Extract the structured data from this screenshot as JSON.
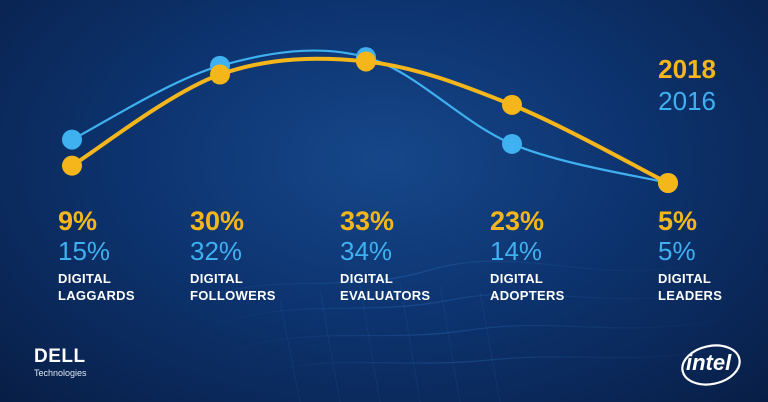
{
  "chart_data": {
    "type": "line",
    "categories": [
      "DIGITAL\nLAGGARDS",
      "DIGITAL\nFOLLOWERS",
      "DIGITAL\nEVALUATORS",
      "DIGITAL\nADOPTERS",
      "DIGITAL\nLEADERS"
    ],
    "series": [
      {
        "name": "2018",
        "color": "#f5b61b",
        "values": [
          9,
          30,
          33,
          23,
          5
        ]
      },
      {
        "name": "2016",
        "color": "#3fb0f0",
        "values": [
          15,
          32,
          34,
          14,
          5
        ]
      }
    ],
    "value_labels_2018": [
      "9%",
      "30%",
      "33%",
      "23%",
      "5%"
    ],
    "value_labels_2016": [
      "15%",
      "32%",
      "34%",
      "14%",
      "5%"
    ],
    "category_labels": [
      [
        "DIGITAL",
        "LAGGARDS"
      ],
      [
        "DIGITAL",
        "FOLLOWERS"
      ],
      [
        "DIGITAL",
        "EVALUATORS"
      ],
      [
        "DIGITAL",
        "ADOPTERS"
      ],
      [
        "DIGITAL",
        "LEADERS"
      ]
    ],
    "legend": "top-right",
    "grid": false
  },
  "legend": {
    "series_a": "2018",
    "series_b": "2016"
  },
  "branding": {
    "dell_word": "DELL",
    "dell_sub": "Technologies",
    "intel_word": "intel"
  }
}
